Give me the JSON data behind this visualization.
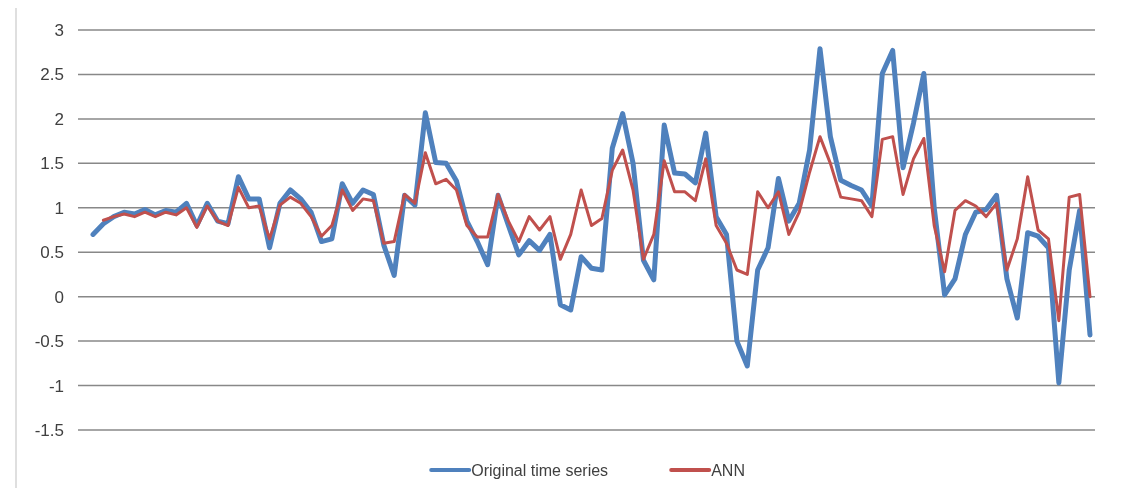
{
  "chart_data": {
    "type": "line",
    "categories": [
      null,
      null,
      null,
      null,
      null,
      null,
      null,
      null,
      null,
      null,
      null,
      null,
      null,
      null,
      null,
      null,
      null,
      null,
      null,
      null,
      null,
      null,
      null,
      null,
      null,
      null,
      null,
      null,
      null,
      null,
      null,
      null,
      null,
      null,
      null,
      null,
      null,
      null,
      null,
      null,
      null,
      null,
      null,
      null,
      null,
      null,
      null,
      null,
      null,
      null,
      null,
      null,
      null,
      null,
      null,
      null,
      null,
      null,
      null,
      null,
      null,
      null,
      null,
      null,
      null,
      null,
      null,
      null,
      null,
      null,
      null,
      null,
      null,
      null,
      null,
      null,
      null,
      null,
      null,
      null,
      null,
      null,
      null,
      null,
      null,
      null,
      null,
      null,
      null,
      null,
      null,
      null,
      null,
      null,
      null,
      null,
      null
    ],
    "series": [
      {
        "name": "Original time series",
        "color": "#4f81bd",
        "values": [
          0.7,
          0.82,
          0.9,
          0.95,
          0.93,
          0.98,
          0.92,
          0.97,
          0.95,
          1.05,
          0.8,
          1.05,
          0.85,
          0.82,
          1.35,
          1.1,
          1.1,
          0.55,
          1.05,
          1.2,
          1.1,
          0.95,
          0.62,
          0.65,
          1.27,
          1.05,
          1.2,
          1.15,
          0.58,
          0.24,
          1.14,
          1.03,
          2.07,
          1.51,
          1.5,
          1.3,
          0.85,
          0.62,
          0.36,
          1.14,
          0.8,
          0.47,
          0.63,
          0.52,
          0.7,
          -0.09,
          -0.15,
          0.45,
          0.32,
          0.3,
          1.67,
          2.06,
          1.5,
          0.41,
          0.19,
          1.93,
          1.39,
          1.38,
          1.28,
          1.84,
          0.9,
          0.7,
          -0.5,
          -0.78,
          0.3,
          0.55,
          1.33,
          0.85,
          1.05,
          1.65,
          2.79,
          1.8,
          1.31,
          1.25,
          1.2,
          1.02,
          2.51,
          2.77,
          1.45,
          1.95,
          2.51,
          1.0,
          0.02,
          0.2,
          0.7,
          0.95,
          0.98,
          1.14,
          0.2,
          -0.24,
          0.72,
          0.68,
          0.55,
          -0.97,
          0.3,
          0.97,
          -0.43
        ]
      },
      {
        "name": "ANN",
        "color": "#c0504d",
        "values": [
          null,
          0.86,
          0.9,
          0.93,
          0.9,
          0.95,
          0.9,
          0.95,
          0.92,
          1.0,
          0.78,
          1.02,
          0.85,
          0.8,
          1.23,
          1.0,
          1.02,
          0.65,
          1.03,
          1.12,
          1.05,
          0.9,
          0.68,
          0.8,
          1.2,
          0.97,
          1.1,
          1.08,
          0.6,
          0.62,
          1.15,
          1.05,
          1.62,
          1.27,
          1.32,
          1.2,
          0.8,
          0.67,
          0.67,
          1.15,
          0.85,
          0.62,
          0.9,
          0.75,
          0.9,
          0.42,
          0.7,
          1.2,
          0.8,
          0.88,
          1.42,
          1.65,
          1.2,
          0.42,
          0.7,
          1.53,
          1.18,
          1.18,
          1.08,
          1.55,
          0.8,
          0.6,
          0.3,
          0.25,
          1.18,
          1.0,
          1.18,
          0.7,
          0.95,
          1.4,
          1.8,
          1.5,
          1.12,
          1.1,
          1.08,
          0.9,
          1.77,
          1.8,
          1.15,
          1.55,
          1.78,
          0.8,
          0.28,
          0.97,
          1.08,
          1.02,
          0.9,
          1.05,
          0.3,
          0.65,
          1.35,
          0.75,
          0.65,
          -0.27,
          1.12,
          1.15,
          0.0
        ]
      }
    ],
    "ylim": [
      -1.5,
      3
    ],
    "yticks": [
      -1.5,
      -1,
      -0.5,
      0,
      0.5,
      1,
      1.5,
      2,
      2.5,
      3
    ],
    "grid": "y",
    "legend": "bottom",
    "marker": "none",
    "line_style": "solid"
  }
}
